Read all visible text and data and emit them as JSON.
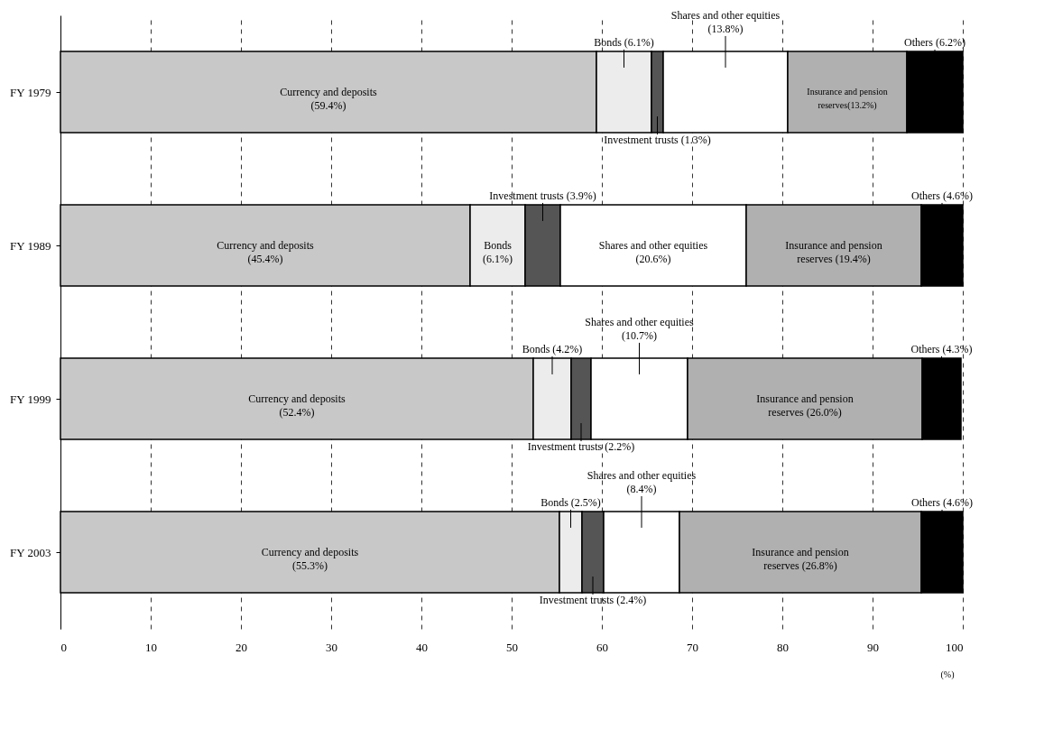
{
  "chart_data": {
    "type": "bar",
    "orientation": "horizontal",
    "stacked": true,
    "categories": [
      "FY 1979",
      "FY 1989",
      "FY 1999",
      "FY 2003"
    ],
    "series": [
      {
        "color": "#c8c8c8",
        "values": [
          59.4,
          45.4,
          52.4,
          55.3
        ],
        "value_labels": [
          "Currency and deposits\n(59.4%)",
          "Currency and deposits\n(45.4%)",
          "Currency and deposits\n(52.4%)",
          "Currency and deposits\n(55.3%)"
        ]
      },
      {
        "color": "#ececec",
        "values": [
          6.1,
          6.1,
          4.2,
          2.5
        ],
        "value_labels": [
          "Bonds (6.1%)",
          "Bonds\n(6.1%)",
          "Bonds (4.2%)",
          "Bonds (2.5%)"
        ]
      },
      {
        "color": "#555555",
        "values": [
          1.3,
          3.9,
          2.2,
          2.4
        ],
        "value_labels": [
          "Investment trusts (1.3%)",
          "Investment trusts (3.9%)",
          "Investment trusts (2.2%)",
          "Investment trusts (2.4%)"
        ]
      },
      {
        "color": "#ffffff",
        "values": [
          13.8,
          20.6,
          10.7,
          8.4
        ],
        "value_labels": [
          "Shares and other equities\n(13.8%)",
          "Shares and other equities\n(20.6%)",
          "Shares and other equities\n(10.7%)",
          "Shares and other equities\n(8.4%)"
        ]
      },
      {
        "color": "#b0b0b0",
        "values": [
          13.2,
          19.4,
          26.0,
          26.8
        ],
        "value_labels": [
          "Insurance and pension\nreserves(13.2%)",
          "Insurance and pension\nreserves (19.4%)",
          "Insurance and pension\nreserves (26.0%)",
          "Insurance and pension\nreserves (26.8%)"
        ]
      },
      {
        "color": "#000000",
        "values": [
          6.2,
          4.6,
          4.3,
          4.6
        ],
        "value_labels": [
          "Others (6.2%)",
          "Others (4.6%)",
          "Others (4.3%)",
          "Others (4.6%)"
        ]
      }
    ],
    "xlim": [
      0,
      100
    ],
    "xticks": [
      0,
      10,
      20,
      30,
      40,
      50,
      60,
      70,
      80,
      90,
      100
    ],
    "xlabel": "(%)",
    "grid": "x"
  }
}
